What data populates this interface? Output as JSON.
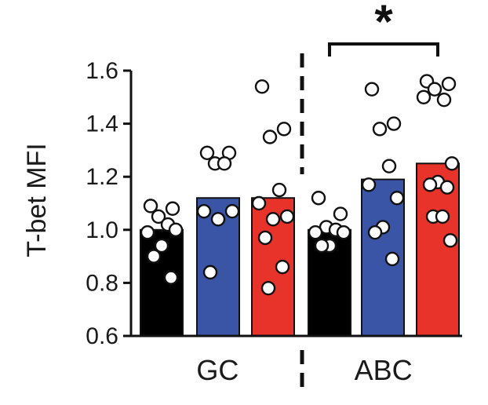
{
  "chart_data": {
    "type": "bar",
    "ylabel": "T-bet MFI",
    "ylim": [
      0.6,
      1.6
    ],
    "yticks": [
      "0.6",
      "0.8",
      "1.0",
      "1.2",
      "1.4",
      "1.6"
    ],
    "groups": [
      {
        "label": "GC",
        "bars": [
          0,
          1,
          2
        ]
      },
      {
        "label": "ABC",
        "bars": [
          3,
          4,
          5
        ]
      }
    ],
    "bars": [
      {
        "group": "GC",
        "color": "#000000",
        "mean": 1.0,
        "points": [
          1.09,
          1.08,
          1.05,
          1.02,
          0.99,
          1.0,
          0.94,
          0.9,
          0.82
        ]
      },
      {
        "group": "GC",
        "color": "#3a55a6",
        "mean": 1.12,
        "points": [
          1.29,
          1.29,
          1.25,
          1.25,
          1.07,
          1.07,
          1.04,
          0.84
        ]
      },
      {
        "group": "GC",
        "color": "#e8332a",
        "mean": 1.12,
        "points": [
          1.54,
          1.38,
          1.35,
          1.15,
          1.1,
          1.05,
          1.04,
          0.97,
          0.86,
          0.78
        ]
      },
      {
        "group": "ABC",
        "color": "#000000",
        "mean": 1.0,
        "points": [
          1.12,
          1.06,
          1.01,
          1.0,
          0.99,
          0.99,
          0.94,
          0.94
        ]
      },
      {
        "group": "ABC",
        "color": "#3a55a6",
        "mean": 1.19,
        "points": [
          1.53,
          1.4,
          1.38,
          1.24,
          1.17,
          1.12,
          1.01,
          0.99,
          0.89
        ]
      },
      {
        "group": "ABC",
        "color": "#e8332a",
        "mean": 1.25,
        "points": [
          1.56,
          1.55,
          1.53,
          1.49,
          1.5,
          1.25,
          1.18,
          1.17,
          1.16,
          1.05,
          1.05,
          0.96
        ]
      }
    ],
    "significance": {
      "label": "*",
      "from_group": "ABC",
      "bars": [
        3,
        5
      ]
    }
  }
}
